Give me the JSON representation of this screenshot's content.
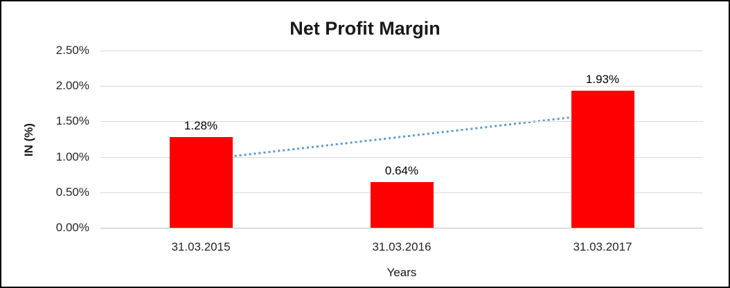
{
  "chart_data": {
    "type": "bar",
    "title": "Net Profit Margin",
    "xlabel": "Years",
    "ylabel": "IN (%)",
    "categories": [
      "31.03.2015",
      "31.03.2016",
      "31.03.2017"
    ],
    "values": [
      1.28,
      0.64,
      1.93
    ],
    "data_labels": [
      "1.28%",
      "0.64%",
      "1.93%"
    ],
    "y_ticks": [
      {
        "value": 2.5,
        "label": "2.50%"
      },
      {
        "value": 2.0,
        "label": "2.00%"
      },
      {
        "value": 1.5,
        "label": "1.50%"
      },
      {
        "value": 1.0,
        "label": "1.00%"
      },
      {
        "value": 0.5,
        "label": "0.50%"
      },
      {
        "value": 0.0,
        "label": "0.00%"
      }
    ],
    "ylim": [
      0,
      2.5
    ],
    "grid": true,
    "legend_position": "none",
    "bar_color": "#ff0000",
    "gridline_color": "#d9d9d9",
    "trendline": {
      "type": "linear",
      "style": "dotted",
      "color": "#5b9bd5",
      "start_value": 0.958,
      "end_value": 1.608
    }
  }
}
